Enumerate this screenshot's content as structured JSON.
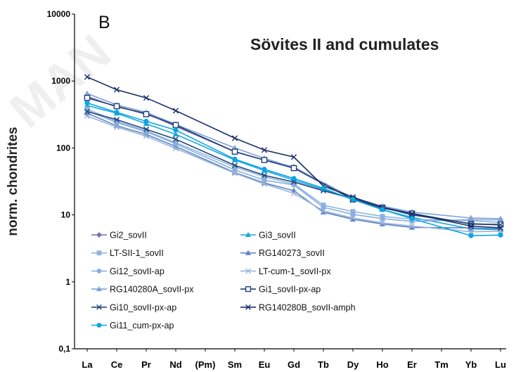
{
  "chart_data": {
    "type": "line",
    "title": "Sövites II and cumulates",
    "panel_label": "B",
    "ylabel": "norm. chondrites",
    "xlabel": "",
    "y_scale": "log",
    "ylim": [
      0.1,
      10000
    ],
    "y_ticks": [
      "0,1",
      "1",
      "10",
      "100",
      "1000",
      "10000"
    ],
    "categories": [
      "La",
      "Ce",
      "Pr",
      "Nd",
      "(Pm)",
      "Sm",
      "Eu",
      "Gd",
      "Tb",
      "Dy",
      "Ho",
      "Er",
      "Tm",
      "Yb",
      "Lu"
    ],
    "grid": false,
    "legend_position": "bottom-left",
    "series": [
      {
        "name": "Gi2_sovII",
        "color": "#7b6fb0",
        "marker": "diamond",
        "values": [
          590,
          410,
          330,
          210,
          null,
          88,
          66,
          52,
          null,
          17,
          12.5,
          10.5,
          null,
          7.3,
          7.1
        ]
      },
      {
        "name": "Gi3_sovII",
        "color": "#18a9de",
        "marker": "triangle",
        "values": [
          430,
          330,
          230,
          160,
          null,
          66,
          46,
          33,
          24,
          17,
          12,
          9.2,
          null,
          6.2,
          6.0
        ]
      },
      {
        "name": "LT-SII-1_sovII",
        "color": "#8fb5e1",
        "marker": "square",
        "values": [
          380,
          250,
          180,
          120,
          null,
          52,
          37,
          29,
          14,
          11.2,
          9.5,
          8.6,
          null,
          8.2,
          7.7
        ]
      },
      {
        "name": "RG140273_sovII",
        "color": "#5b86c5",
        "marker": "triangle",
        "values": [
          330,
          215,
          160,
          105,
          null,
          43,
          30,
          23,
          11,
          8.6,
          7.3,
          6.5,
          null,
          6.4,
          6.2
        ]
      },
      {
        "name": "Gi12_sovII-ap",
        "color": "#8aaee0",
        "marker": "circle",
        "values": [
          360,
          240,
          175,
          115,
          null,
          47,
          33,
          28,
          13,
          10.2,
          8.8,
          8.0,
          null,
          8.5,
          8.4
        ]
      },
      {
        "name": "LT-cum-1_sovII-px",
        "color": "#9bb3d9",
        "marker": "x",
        "values": [
          300,
          205,
          150,
          98,
          null,
          42,
          29,
          21,
          11.5,
          9.0,
          7.6,
          6.8,
          null,
          5.6,
          5.7
        ]
      },
      {
        "name": "RG140280A_sovII-px",
        "color": "#7ea4d6",
        "marker": "triangle",
        "values": [
          650,
          440,
          340,
          225,
          null,
          100,
          70,
          51,
          null,
          18,
          13.5,
          11,
          null,
          9.0,
          8.8
        ]
      },
      {
        "name": "Gi1_sovII-px-ap",
        "color": "#1f3f7a",
        "marker": "square-open",
        "values": [
          560,
          420,
          320,
          220,
          null,
          88,
          66,
          50,
          null,
          17,
          12.8,
          10.5,
          null,
          7.3,
          7.2
        ]
      },
      {
        "name": "Gi10_sovII-px-ap",
        "color": "#26477a",
        "marker": "x",
        "values": [
          350,
          265,
          190,
          135,
          null,
          55,
          39,
          31,
          23,
          17.5,
          13,
          10,
          null,
          7.4,
          7.1
        ]
      },
      {
        "name": "RG140280B_sovII-amph",
        "color": "#1b2f66",
        "marker": "x",
        "values": [
          1150,
          740,
          560,
          360,
          null,
          140,
          93,
          73,
          27,
          18.5,
          13,
          10.5,
          null,
          6.8,
          6.4
        ]
      },
      {
        "name": "Gi11_cum-px-ap",
        "color": "#0aa6e3",
        "marker": "circle",
        "values": [
          470,
          340,
          250,
          185,
          null,
          68,
          48,
          35,
          25,
          17,
          12,
          8.8,
          null,
          4.9,
          5.0
        ]
      }
    ]
  },
  "watermark_text": "MAN",
  "colors": {
    "axis": "#000000"
  }
}
